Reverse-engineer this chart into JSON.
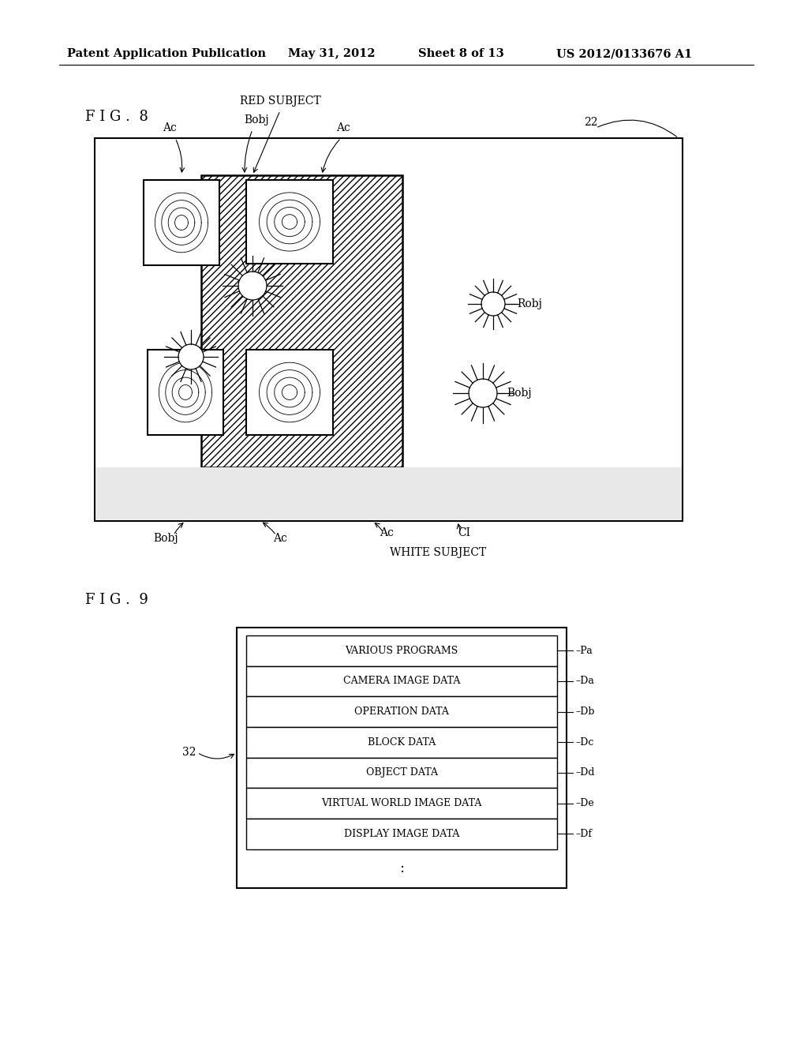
{
  "bg_color": "#ffffff",
  "header_text": "Patent Application Publication",
  "header_date": "May 31, 2012  ",
  "header_sheet": "Sheet 8 of 13",
  "header_patent": "US 2012/0133676 A1",
  "fig8_label": "F I G .  8",
  "fig9_label": "F I G .  9",
  "fig9_rows": [
    "VARIOUS PROGRAMS",
    "CAMERA IMAGE DATA",
    "OPERATION DATA",
    "BLOCK DATA",
    "OBJECT DATA",
    "VIRTUAL WORLD IMAGE DATA",
    "DISPLAY IMAGE DATA"
  ],
  "fig9_row_labels": [
    "Pa",
    "Da",
    "Db",
    "Dc",
    "Dd",
    "De",
    "Df"
  ]
}
